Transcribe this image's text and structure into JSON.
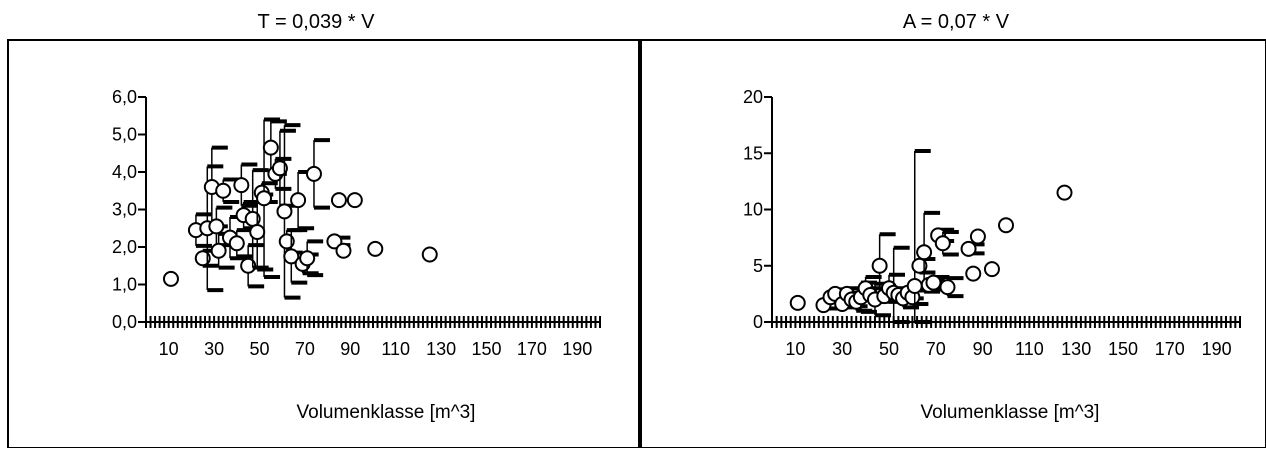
{
  "chart_data": [
    {
      "type": "scatter",
      "title": "T = 0,039 * V",
      "xlabel": "Volumenklasse [m^3]",
      "ylabel": "",
      "xlim": [
        0,
        200
      ],
      "ylim": [
        0,
        6
      ],
      "x_ticks": [
        10,
        30,
        50,
        70,
        90,
        110,
        130,
        150,
        170,
        190
      ],
      "x_tick_labels": [
        "10",
        "30",
        "50",
        "70",
        "90",
        "110",
        "130",
        "150",
        "170",
        "190"
      ],
      "y_ticks": [
        0,
        1,
        2,
        3,
        4,
        5,
        6
      ],
      "y_tick_labels": [
        "0,0",
        "1,0",
        "2,0",
        "3,0",
        "4,0",
        "5,0",
        "6,0"
      ],
      "grid": false,
      "legend": "none",
      "points": [
        {
          "x": 11,
          "y": 1.15
        },
        {
          "x": 22,
          "y": 2.45,
          "err": 0.42
        },
        {
          "x": 25,
          "y": 1.7,
          "err": 0.2
        },
        {
          "x": 27,
          "y": 2.5,
          "err": 1.65
        },
        {
          "x": 29,
          "y": 3.6,
          "err": 1.05
        },
        {
          "x": 31,
          "y": 2.55,
          "err": 0.5
        },
        {
          "x": 32,
          "y": 1.9,
          "err": 0.45
        },
        {
          "x": 34,
          "y": 3.5,
          "err": 0.3
        },
        {
          "x": 37,
          "y": 2.25,
          "err": 0.55
        },
        {
          "x": 40,
          "y": 2.1,
          "err": 0.35
        },
        {
          "x": 42,
          "y": 3.65,
          "err": 0.55
        },
        {
          "x": 43,
          "y": 2.85,
          "err": 0.35
        },
        {
          "x": 45,
          "y": 1.5,
          "err": 0.55
        },
        {
          "x": 47,
          "y": 2.75,
          "err": 1.3
        },
        {
          "x": 49,
          "y": 2.4,
          "err": 1.0
        },
        {
          "x": 51,
          "y": 3.45,
          "err": 0.25
        },
        {
          "x": 52,
          "y": 3.3,
          "err": 2.1
        },
        {
          "x": 55,
          "y": 4.65,
          "err": 0.7
        },
        {
          "x": 57,
          "y": 3.95,
          "err": 0.4
        },
        {
          "x": 59,
          "y": 4.1,
          "err": 1.0
        },
        {
          "x": 61,
          "y": 2.95,
          "err": 2.3
        },
        {
          "x": 62,
          "y": 2.15,
          "err": 0.3
        },
        {
          "x": 64,
          "y": 1.75,
          "err": 0.7
        },
        {
          "x": 67,
          "y": 3.25,
          "err": 0.75
        },
        {
          "x": 69,
          "y": 1.55,
          "err": 0.25
        },
        {
          "x": 71,
          "y": 1.7,
          "err": 0.45
        },
        {
          "x": 74,
          "y": 3.95,
          "err": 0.9
        },
        {
          "x": 83,
          "y": 2.15,
          "err": 0.1
        },
        {
          "x": 85,
          "y": 3.25
        },
        {
          "x": 87,
          "y": 1.9
        },
        {
          "x": 92,
          "y": 3.25
        },
        {
          "x": 101,
          "y": 1.95
        },
        {
          "x": 125,
          "y": 1.8
        }
      ]
    },
    {
      "type": "scatter",
      "title": "A = 0,07 * V",
      "xlabel": "Volumenklasse [m^3]",
      "ylabel": "",
      "xlim": [
        0,
        200
      ],
      "ylim": [
        0,
        20
      ],
      "x_ticks": [
        10,
        30,
        50,
        70,
        90,
        110,
        130,
        150,
        170,
        190
      ],
      "x_tick_labels": [
        "10",
        "30",
        "50",
        "70",
        "90",
        "110",
        "130",
        "150",
        "170",
        "190"
      ],
      "y_ticks": [
        0,
        5,
        10,
        15,
        20
      ],
      "y_tick_labels": [
        "0",
        "5",
        "10",
        "15",
        "20"
      ],
      "grid": false,
      "legend": "none",
      "points": [
        {
          "x": 11,
          "y": 1.7
        },
        {
          "x": 22,
          "y": 1.5,
          "err": 0.3
        },
        {
          "x": 25,
          "y": 2.2,
          "err": 0.4
        },
        {
          "x": 27,
          "y": 2.5,
          "err": 0.4
        },
        {
          "x": 30,
          "y": 1.6,
          "err": 0.3
        },
        {
          "x": 32,
          "y": 2.5,
          "err": 0.5
        },
        {
          "x": 34,
          "y": 2.0,
          "err": 0.6
        },
        {
          "x": 36,
          "y": 1.8,
          "err": 0.8
        },
        {
          "x": 38,
          "y": 2.2,
          "err": 1.3
        },
        {
          "x": 40,
          "y": 3.0,
          "err": 1.0
        },
        {
          "x": 42,
          "y": 2.4,
          "err": 0.6
        },
        {
          "x": 44,
          "y": 2.0,
          "err": 1.4
        },
        {
          "x": 46,
          "y": 5.0,
          "err": 2.8
        },
        {
          "x": 48,
          "y": 2.3,
          "err": 0.5
        },
        {
          "x": 50,
          "y": 3.0,
          "err": 1.2
        },
        {
          "x": 52,
          "y": 2.6,
          "err": 4.0
        },
        {
          "x": 54,
          "y": 2.4,
          "err": 0.6
        },
        {
          "x": 56,
          "y": 2.1,
          "err": 0.8
        },
        {
          "x": 58,
          "y": 2.6,
          "err": 0.5
        },
        {
          "x": 60,
          "y": 2.2,
          "err": 0.6
        },
        {
          "x": 61,
          "y": 3.2,
          "err": 12.0
        },
        {
          "x": 63,
          "y": 5.0,
          "err": 0.6
        },
        {
          "x": 65,
          "y": 6.2,
          "err": 3.5
        },
        {
          "x": 67,
          "y": 3.3,
          "err": 0.4
        },
        {
          "x": 69,
          "y": 3.5,
          "err": 0.5
        },
        {
          "x": 71,
          "y": 7.7,
          "err": 0.5
        },
        {
          "x": 73,
          "y": 7.0,
          "err": 1.0
        },
        {
          "x": 75,
          "y": 3.1,
          "err": 0.8
        },
        {
          "x": 84,
          "y": 6.5,
          "err": 0.4
        },
        {
          "x": 86,
          "y": 4.3
        },
        {
          "x": 88,
          "y": 7.6
        },
        {
          "x": 94,
          "y": 4.7
        },
        {
          "x": 100,
          "y": 8.6
        },
        {
          "x": 125,
          "y": 11.5
        }
      ]
    }
  ]
}
